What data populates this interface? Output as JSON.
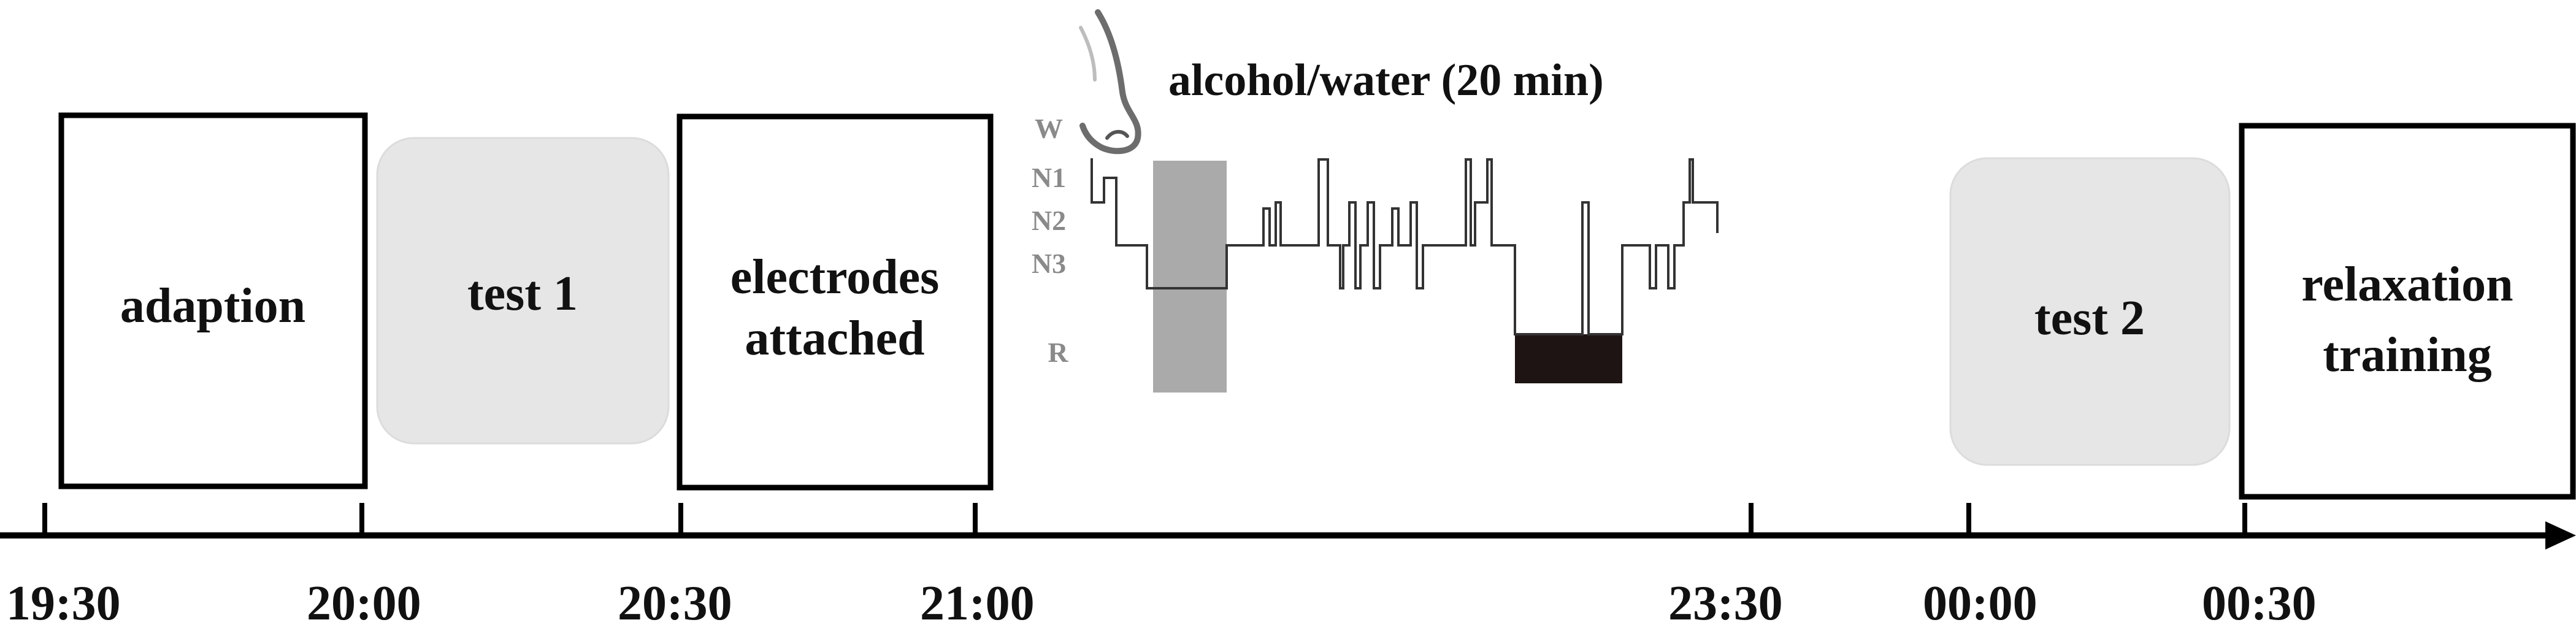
{
  "condition": {
    "label": "alcohol/water (20 min)",
    "icon": "nose-icon"
  },
  "sleep_stages": [
    "W",
    "N1",
    "N2",
    "N3",
    "R"
  ],
  "sessions": [
    {
      "id": "adaption",
      "lines": [
        "adaption"
      ],
      "style": "outlined"
    },
    {
      "id": "test1",
      "lines": [
        "test 1"
      ],
      "style": "shaded"
    },
    {
      "id": "electrodes",
      "lines": [
        "electrodes",
        "attached"
      ],
      "style": "outlined"
    },
    {
      "id": "test2",
      "lines": [
        "test 2"
      ],
      "style": "shaded"
    },
    {
      "id": "relaxation",
      "lines": [
        "relaxation",
        "training"
      ],
      "style": "outlined"
    }
  ],
  "timeline": {
    "ticks": [
      "19:30",
      "20:00",
      "20:30",
      "21:00",
      "23:30",
      "00:00",
      "00:30"
    ]
  },
  "colors": {
    "box_border": "#000000",
    "shaded_fill": "#e6e6e6",
    "hypnogram_line": "#333333",
    "hypnogram_shade": "#aaaaaa",
    "rem_fill": "#1f1414",
    "stage_label": "#8a8a8a"
  }
}
